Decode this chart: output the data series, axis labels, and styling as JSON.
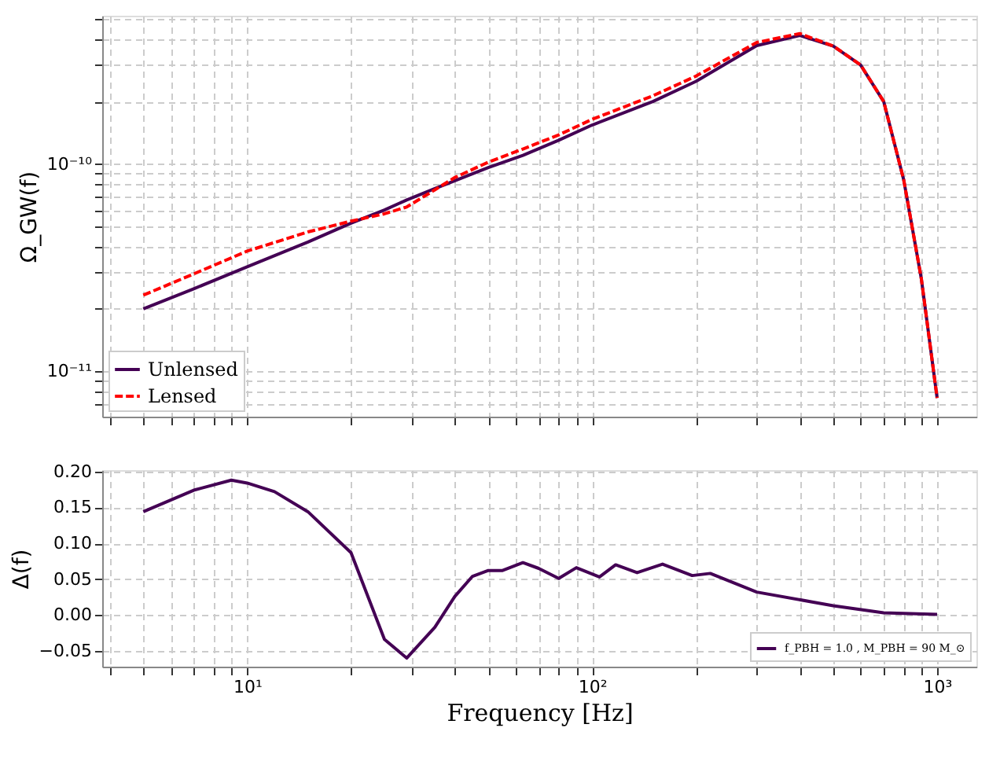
{
  "chart_data": [
    {
      "type": "line",
      "ylabel": "Ω_GW(f)",
      "log": "xy",
      "grid": true,
      "legend": "bottom left",
      "tick_labels": "y",
      "xlim": [
        3.8,
        1300
      ],
      "ylim": [
        6.05e-12,
        5.18e-10
      ],
      "xticks": [
        {
          "value": 4,
          "label": null
        },
        {
          "value": 5,
          "label": null
        },
        {
          "value": 6,
          "label": null
        },
        {
          "value": 7,
          "label": null
        },
        {
          "value": 8,
          "label": null
        },
        {
          "value": 9,
          "label": null
        },
        {
          "value": 10,
          "label": null
        },
        {
          "value": 20,
          "label": null
        },
        {
          "value": 30,
          "label": null
        },
        {
          "value": 40,
          "label": null
        },
        {
          "value": 50,
          "label": null
        },
        {
          "value": 60,
          "label": null
        },
        {
          "value": 70,
          "label": null
        },
        {
          "value": 80,
          "label": null
        },
        {
          "value": 90,
          "label": null
        },
        {
          "value": 100,
          "label": null
        },
        {
          "value": 200,
          "label": null
        },
        {
          "value": 300,
          "label": null
        },
        {
          "value": 400,
          "label": null
        },
        {
          "value": 500,
          "label": null
        },
        {
          "value": 600,
          "label": null
        },
        {
          "value": 700,
          "label": null
        },
        {
          "value": 800,
          "label": null
        },
        {
          "value": 900,
          "label": null
        },
        {
          "value": 1000,
          "label": null
        }
      ],
      "yticks": [
        {
          "value": 7e-12,
          "label": null
        },
        {
          "value": 8e-12,
          "label": null
        },
        {
          "value": 9e-12,
          "label": null
        },
        {
          "value": 1e-11,
          "label": "10⁻¹¹"
        },
        {
          "value": 2e-11,
          "label": null
        },
        {
          "value": 3e-11,
          "label": null
        },
        {
          "value": 4e-11,
          "label": null
        },
        {
          "value": 5e-11,
          "label": null
        },
        {
          "value": 6e-11,
          "label": null
        },
        {
          "value": 7e-11,
          "label": null
        },
        {
          "value": 8e-11,
          "label": null
        },
        {
          "value": 9e-11,
          "label": null
        },
        {
          "value": 1e-10,
          "label": "10⁻¹⁰"
        },
        {
          "value": 2e-10,
          "label": null
        },
        {
          "value": 3e-10,
          "label": null
        },
        {
          "value": 4e-10,
          "label": null
        },
        {
          "value": 5e-10,
          "label": null
        }
      ],
      "x": [
        5,
        7,
        10,
        15,
        20,
        25,
        29,
        35,
        40,
        50,
        63,
        80,
        100,
        150,
        200,
        300,
        400,
        500,
        600,
        700,
        800,
        900,
        1000
      ],
      "series": [
        {
          "name": "Unlensed",
          "color": "#440154",
          "line_style": "solid",
          "values": [
            2e-11,
            2.5e-11,
            3.19e-11,
            4.2e-11,
            5.18e-11,
            6e-11,
            6.7e-11,
            7.6e-11,
            8.3e-11,
            9.6e-11,
            1.1e-10,
            1.3e-10,
            1.54e-10,
            2e-10,
            2.5e-10,
            3.72e-10,
            4.16e-10,
            3.7e-10,
            3e-10,
            2e-10,
            8.4e-11,
            2.8e-11,
            7.45e-12
          ]
        },
        {
          "name": "Lensed",
          "color": "#ff0000",
          "line_style": "dashed",
          "values": [
            2.33e-11,
            2.95e-11,
            3.8e-11,
            4.7e-11,
            5.3e-11,
            5.75e-11,
            6.2e-11,
            7.5e-11,
            8.6e-11,
            1.02e-10,
            1.18e-10,
            1.38e-10,
            1.64e-10,
            2.13e-10,
            2.65e-10,
            3.85e-10,
            4.25e-10,
            3.7e-10,
            3e-10,
            2e-10,
            8.4e-11,
            2.8e-11,
            7.45e-12
          ]
        }
      ]
    },
    {
      "type": "line",
      "xlabel": "Frequency [Hz]",
      "ylabel": "Δ(f)",
      "log": "x",
      "grid": true,
      "legend": "bottom right",
      "xlim": [
        3.8,
        1300
      ],
      "ylim": [
        -0.072,
        0.202
      ],
      "xticks": [
        {
          "value": 4,
          "label": null
        },
        {
          "value": 5,
          "label": null
        },
        {
          "value": 6,
          "label": null
        },
        {
          "value": 7,
          "label": null
        },
        {
          "value": 8,
          "label": null
        },
        {
          "value": 9,
          "label": null
        },
        {
          "value": 10,
          "label": "10¹"
        },
        {
          "value": 20,
          "label": null
        },
        {
          "value": 30,
          "label": null
        },
        {
          "value": 40,
          "label": null
        },
        {
          "value": 50,
          "label": null
        },
        {
          "value": 60,
          "label": null
        },
        {
          "value": 70,
          "label": null
        },
        {
          "value": 80,
          "label": null
        },
        {
          "value": 90,
          "label": null
        },
        {
          "value": 100,
          "label": "10²"
        },
        {
          "value": 200,
          "label": null
        },
        {
          "value": 300,
          "label": null
        },
        {
          "value": 400,
          "label": null
        },
        {
          "value": 500,
          "label": null
        },
        {
          "value": 600,
          "label": null
        },
        {
          "value": 700,
          "label": null
        },
        {
          "value": 800,
          "label": null
        },
        {
          "value": 900,
          "label": null
        },
        {
          "value": 1000,
          "label": "10³"
        }
      ],
      "yticks": [
        {
          "value": -0.05,
          "label": "−0.05"
        },
        {
          "value": 0,
          "label": "0.00"
        },
        {
          "value": 0.05,
          "label": "0.05"
        },
        {
          "value": 0.1,
          "label": "0.10"
        },
        {
          "value": 0.15,
          "label": "0.15"
        },
        {
          "value": 0.2,
          "label": "0.20"
        }
      ],
      "x": [
        5,
        7,
        9,
        10,
        12,
        15,
        20,
        25,
        29,
        35,
        40,
        45,
        50,
        55,
        63,
        70,
        80,
        90,
        105,
        117,
        135,
        160,
        195,
        220,
        300,
        500,
        700,
        1000
      ],
      "series": [
        {
          "name": "f_PBH = 1.0 , M_PBH = 90 M_⊙",
          "color": "#440154",
          "line_style": "solid",
          "values": [
            0.144,
            0.174,
            0.188,
            0.184,
            0.172,
            0.144,
            0.087,
            -0.034,
            -0.06,
            -0.017,
            0.026,
            0.054,
            0.062,
            0.062,
            0.073,
            0.065,
            0.051,
            0.066,
            0.053,
            0.07,
            0.059,
            0.071,
            0.055,
            0.058,
            0.032,
            0.013,
            0.003,
            0.001
          ]
        }
      ]
    }
  ]
}
